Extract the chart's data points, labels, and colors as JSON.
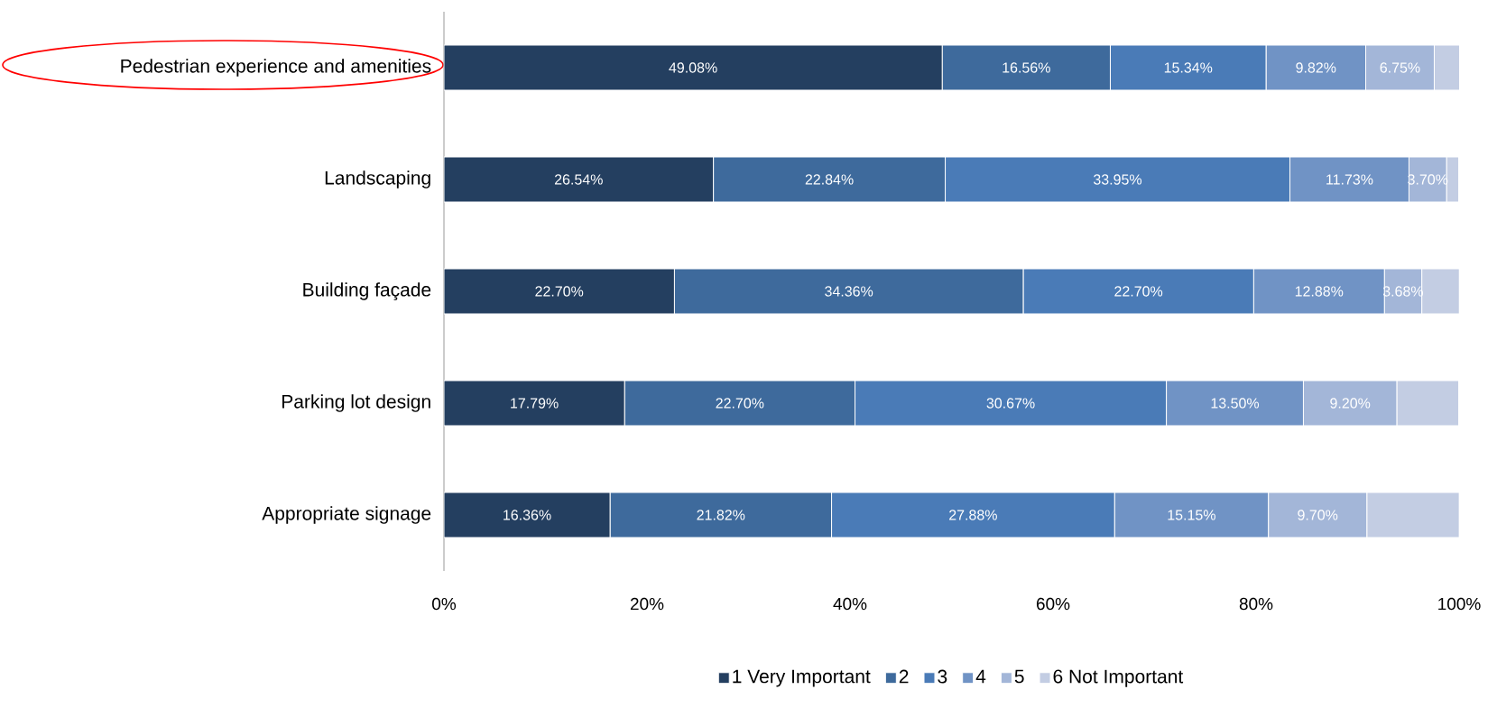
{
  "chart_data": {
    "type": "bar",
    "orientation": "horizontal",
    "stacked": true,
    "legend": "bottom",
    "categories": [
      "Pedestrian experience and amenities",
      "Landscaping",
      "Building façade",
      "Parking lot design",
      "Appropriate signage"
    ],
    "xlim": [
      0,
      100
    ],
    "xticks": [
      {
        "value": 0,
        "label": "0%"
      },
      {
        "value": 20,
        "label": "20%"
      },
      {
        "value": 40,
        "label": "40%"
      },
      {
        "value": 60,
        "label": "60%"
      },
      {
        "value": 80,
        "label": "80%"
      },
      {
        "value": 100,
        "label": "100%"
      }
    ],
    "series": [
      {
        "name": "1 Very Important",
        "color": "#243f60",
        "values": [
          49.08,
          26.54,
          22.7,
          17.79,
          16.36
        ],
        "value_labels": [
          "49.08%",
          "26.54%",
          "22.70%",
          "17.79%",
          "16.36%"
        ]
      },
      {
        "name": "2",
        "color": "#3e6a9c",
        "values": [
          16.56,
          22.84,
          34.36,
          22.7,
          21.82
        ],
        "value_labels": [
          "16.56%",
          "22.84%",
          "34.36%",
          "22.70%",
          "21.82%"
        ]
      },
      {
        "name": "3",
        "color": "#4a7bb7",
        "values": [
          15.34,
          33.95,
          22.7,
          30.67,
          27.88
        ],
        "value_labels": [
          "15.34%",
          "33.95%",
          "22.70%",
          "30.67%",
          "27.88%"
        ]
      },
      {
        "name": "4",
        "color": "#7093c5",
        "values": [
          9.82,
          11.73,
          12.88,
          13.5,
          15.15
        ],
        "value_labels": [
          "9.82%",
          "11.73%",
          "12.88%",
          "13.50%",
          "15.15%"
        ]
      },
      {
        "name": "5",
        "color": "#a3b6d8",
        "values": [
          6.75,
          3.7,
          3.68,
          9.2,
          9.7
        ],
        "value_labels": [
          "6.75%",
          "3.70%",
          "3.68%",
          "9.20%",
          "9.70%"
        ]
      },
      {
        "name": "6 Not Important",
        "color": "#c3cde3",
        "values": [
          2.5,
          1.2,
          3.7,
          6.1,
          9.1
        ],
        "value_labels": [
          null,
          null,
          null,
          null,
          null
        ]
      }
    ]
  }
}
